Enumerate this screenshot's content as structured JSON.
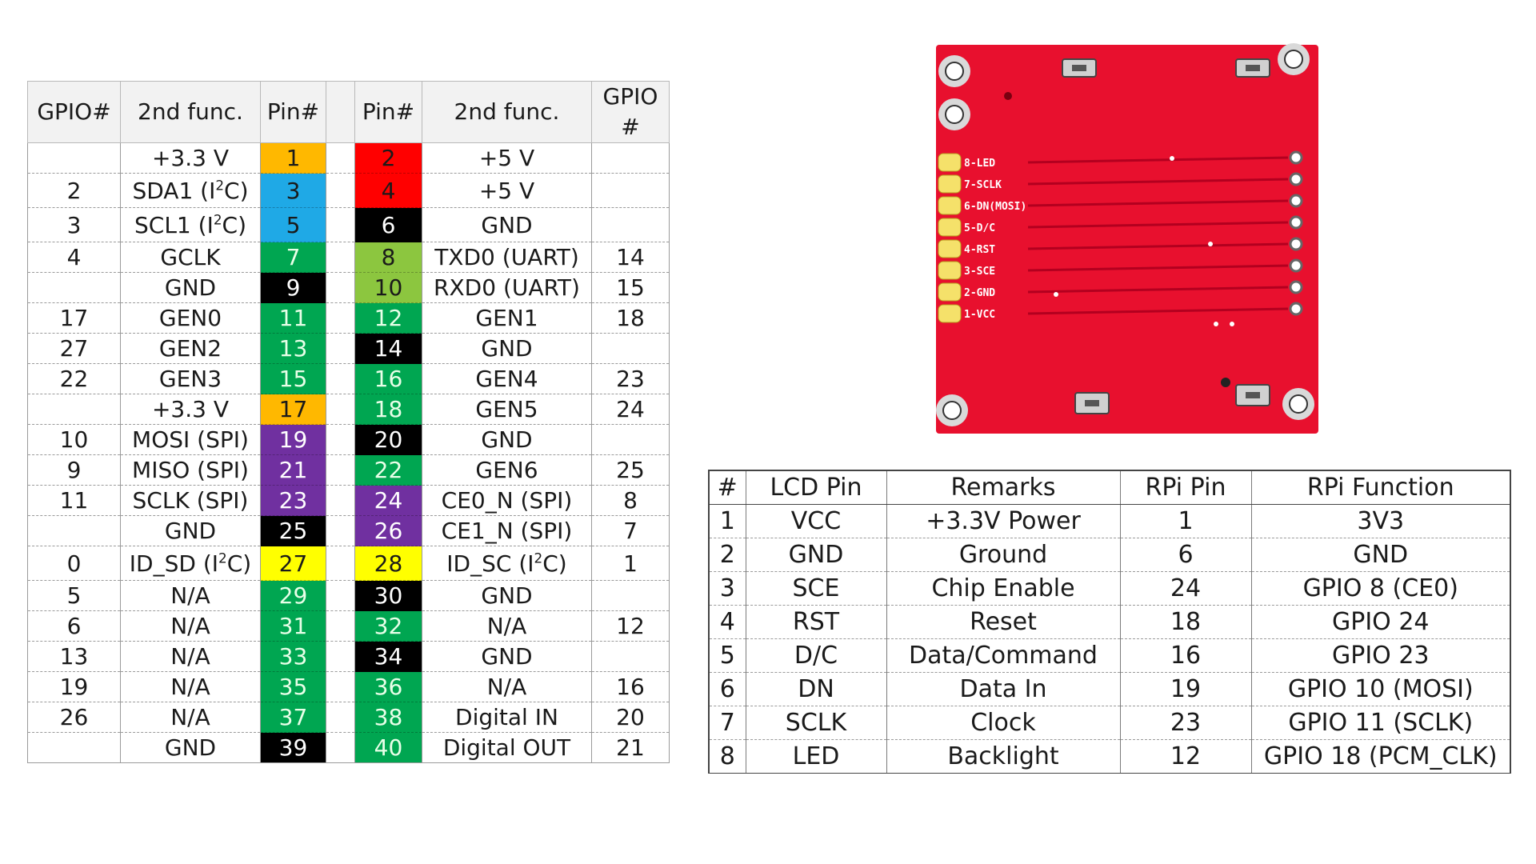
{
  "gpio_table": {
    "headers": [
      "GPIO#",
      "2nd func.",
      "Pin#",
      "",
      "Pin#",
      "2nd func.",
      "GPIO\n#"
    ],
    "rows": [
      {
        "lg": "",
        "lf": "+3.3 V",
        "lp": "1",
        "lc": "#FFB800",
        "rp": "2",
        "rc": "#FF0000",
        "rf": "+5 V",
        "rg": ""
      },
      {
        "lg": "2",
        "lf": "SDA1 (I",
        "lsup": "2",
        "lf2": "C)",
        "lp": "3",
        "lc": "#1FA9E6",
        "rp": "4",
        "rc": "#FF0000",
        "rf": "+5 V",
        "rg": ""
      },
      {
        "lg": "3",
        "lf": "SCL1 (I",
        "lsup": "2",
        "lf2": "C)",
        "lp": "5",
        "lc": "#1FA9E6",
        "rp": "6",
        "rc": "#000000",
        "rf": "GND",
        "rg": ""
      },
      {
        "lg": "4",
        "lf": "GCLK",
        "lp": "7",
        "lc": "#00A651",
        "rp": "8",
        "rc": "#8CC63F",
        "rf": "TXD0 (UART)",
        "rg": "14"
      },
      {
        "lg": "",
        "lf": "GND",
        "lp": "9",
        "lc": "#000000",
        "rp": "10",
        "rc": "#8CC63F",
        "rf": "RXD0 (UART)",
        "rg": "15"
      },
      {
        "lg": "17",
        "lf": "GEN0",
        "lp": "11",
        "lc": "#00A651",
        "rp": "12",
        "rc": "#00A651",
        "rf": "GEN1",
        "rg": "18"
      },
      {
        "lg": "27",
        "lf": "GEN2",
        "lp": "13",
        "lc": "#00A651",
        "rp": "14",
        "rc": "#000000",
        "rf": "GND",
        "rg": ""
      },
      {
        "lg": "22",
        "lf": "GEN3",
        "lp": "15",
        "lc": "#00A651",
        "rp": "16",
        "rc": "#00A651",
        "rf": "GEN4",
        "rg": "23"
      },
      {
        "lg": "",
        "lf": "+3.3 V",
        "lp": "17",
        "lc": "#FFB800",
        "rp": "18",
        "rc": "#00A651",
        "rf": "GEN5",
        "rg": "24"
      },
      {
        "lg": "10",
        "lf": "MOSI (SPI)",
        "lp": "19",
        "lc": "#7030A0",
        "rp": "20",
        "rc": "#000000",
        "rf": "GND",
        "rg": ""
      },
      {
        "lg": "9",
        "lf": "MISO (SPI)",
        "lp": "21",
        "lc": "#7030A0",
        "rp": "22",
        "rc": "#00A651",
        "rf": "GEN6",
        "rg": "25"
      },
      {
        "lg": "11",
        "lf": "SCLK (SPI)",
        "lp": "23",
        "lc": "#7030A0",
        "rp": "24",
        "rc": "#7030A0",
        "rf": "CE0_N (SPI)",
        "rg": "8"
      },
      {
        "lg": "",
        "lf": "GND",
        "lp": "25",
        "lc": "#000000",
        "rp": "26",
        "rc": "#7030A0",
        "rf": "CE1_N (SPI)",
        "rg": "7"
      },
      {
        "lg": "0",
        "lf": "ID_SD (I",
        "lsup": "2",
        "lf2": "C)",
        "lp": "27",
        "lc": "#FFFF00",
        "rp": "28",
        "rc": "#FFFF00",
        "rf": "ID_SC (I",
        "rsup": "2",
        "rf2": "C)",
        "rg": "1"
      },
      {
        "lg": "5",
        "lf": "N/A",
        "lp": "29",
        "lc": "#00A651",
        "rp": "30",
        "rc": "#000000",
        "rf": "GND",
        "rg": ""
      },
      {
        "lg": "6",
        "lf": "N/A",
        "lp": "31",
        "lc": "#00A651",
        "rp": "32",
        "rc": "#00A651",
        "rf": "N/A",
        "rg": "12"
      },
      {
        "lg": "13",
        "lf": "N/A",
        "lp": "33",
        "lc": "#00A651",
        "rp": "34",
        "rc": "#000000",
        "rf": "GND",
        "rg": ""
      },
      {
        "lg": "19",
        "lf": "N/A",
        "lp": "35",
        "lc": "#00A651",
        "rp": "36",
        "rc": "#00A651",
        "rf": "N/A",
        "rg": "16"
      },
      {
        "lg": "26",
        "lf": "N/A",
        "lp": "37",
        "lc": "#00A651",
        "rp": "38",
        "rc": "#00A651",
        "rf": "Digital IN",
        "rg": "20"
      },
      {
        "lg": "",
        "lf": "GND",
        "lp": "39",
        "lc": "#000000",
        "rp": "40",
        "rc": "#00A651",
        "rf": "Digital OUT",
        "rg": "21"
      }
    ]
  },
  "lcd_board": {
    "color": "#E8102E",
    "pin_labels": [
      "8-LED",
      "7-SCLK",
      "6-DN(MOSI)",
      "5-D/C",
      "4-RST",
      "3-SCE",
      "2-GND",
      "1-VCC"
    ]
  },
  "lcd_table": {
    "headers": [
      "#",
      "LCD Pin",
      "Remarks",
      "RPi Pin",
      "RPi Function"
    ],
    "rows": [
      [
        "1",
        "VCC",
        "+3.3V Power",
        "1",
        "3V3"
      ],
      [
        "2",
        "GND",
        "Ground",
        "6",
        "GND"
      ],
      [
        "3",
        "SCE",
        "Chip Enable",
        "24",
        "GPIO 8 (CE0)"
      ],
      [
        "4",
        "RST",
        "Reset",
        "18",
        "GPIO 24"
      ],
      [
        "5",
        "D/C",
        "Data/Command",
        "16",
        "GPIO 23"
      ],
      [
        "6",
        "DN",
        "Data In",
        "19",
        "GPIO 10 (MOSI)"
      ],
      [
        "7",
        "SCLK",
        "Clock",
        "23",
        "GPIO 11 (SCLK)"
      ],
      [
        "8",
        "LED",
        "Backlight",
        "12",
        "GPIO 18 (PCM_CLK)"
      ]
    ]
  }
}
